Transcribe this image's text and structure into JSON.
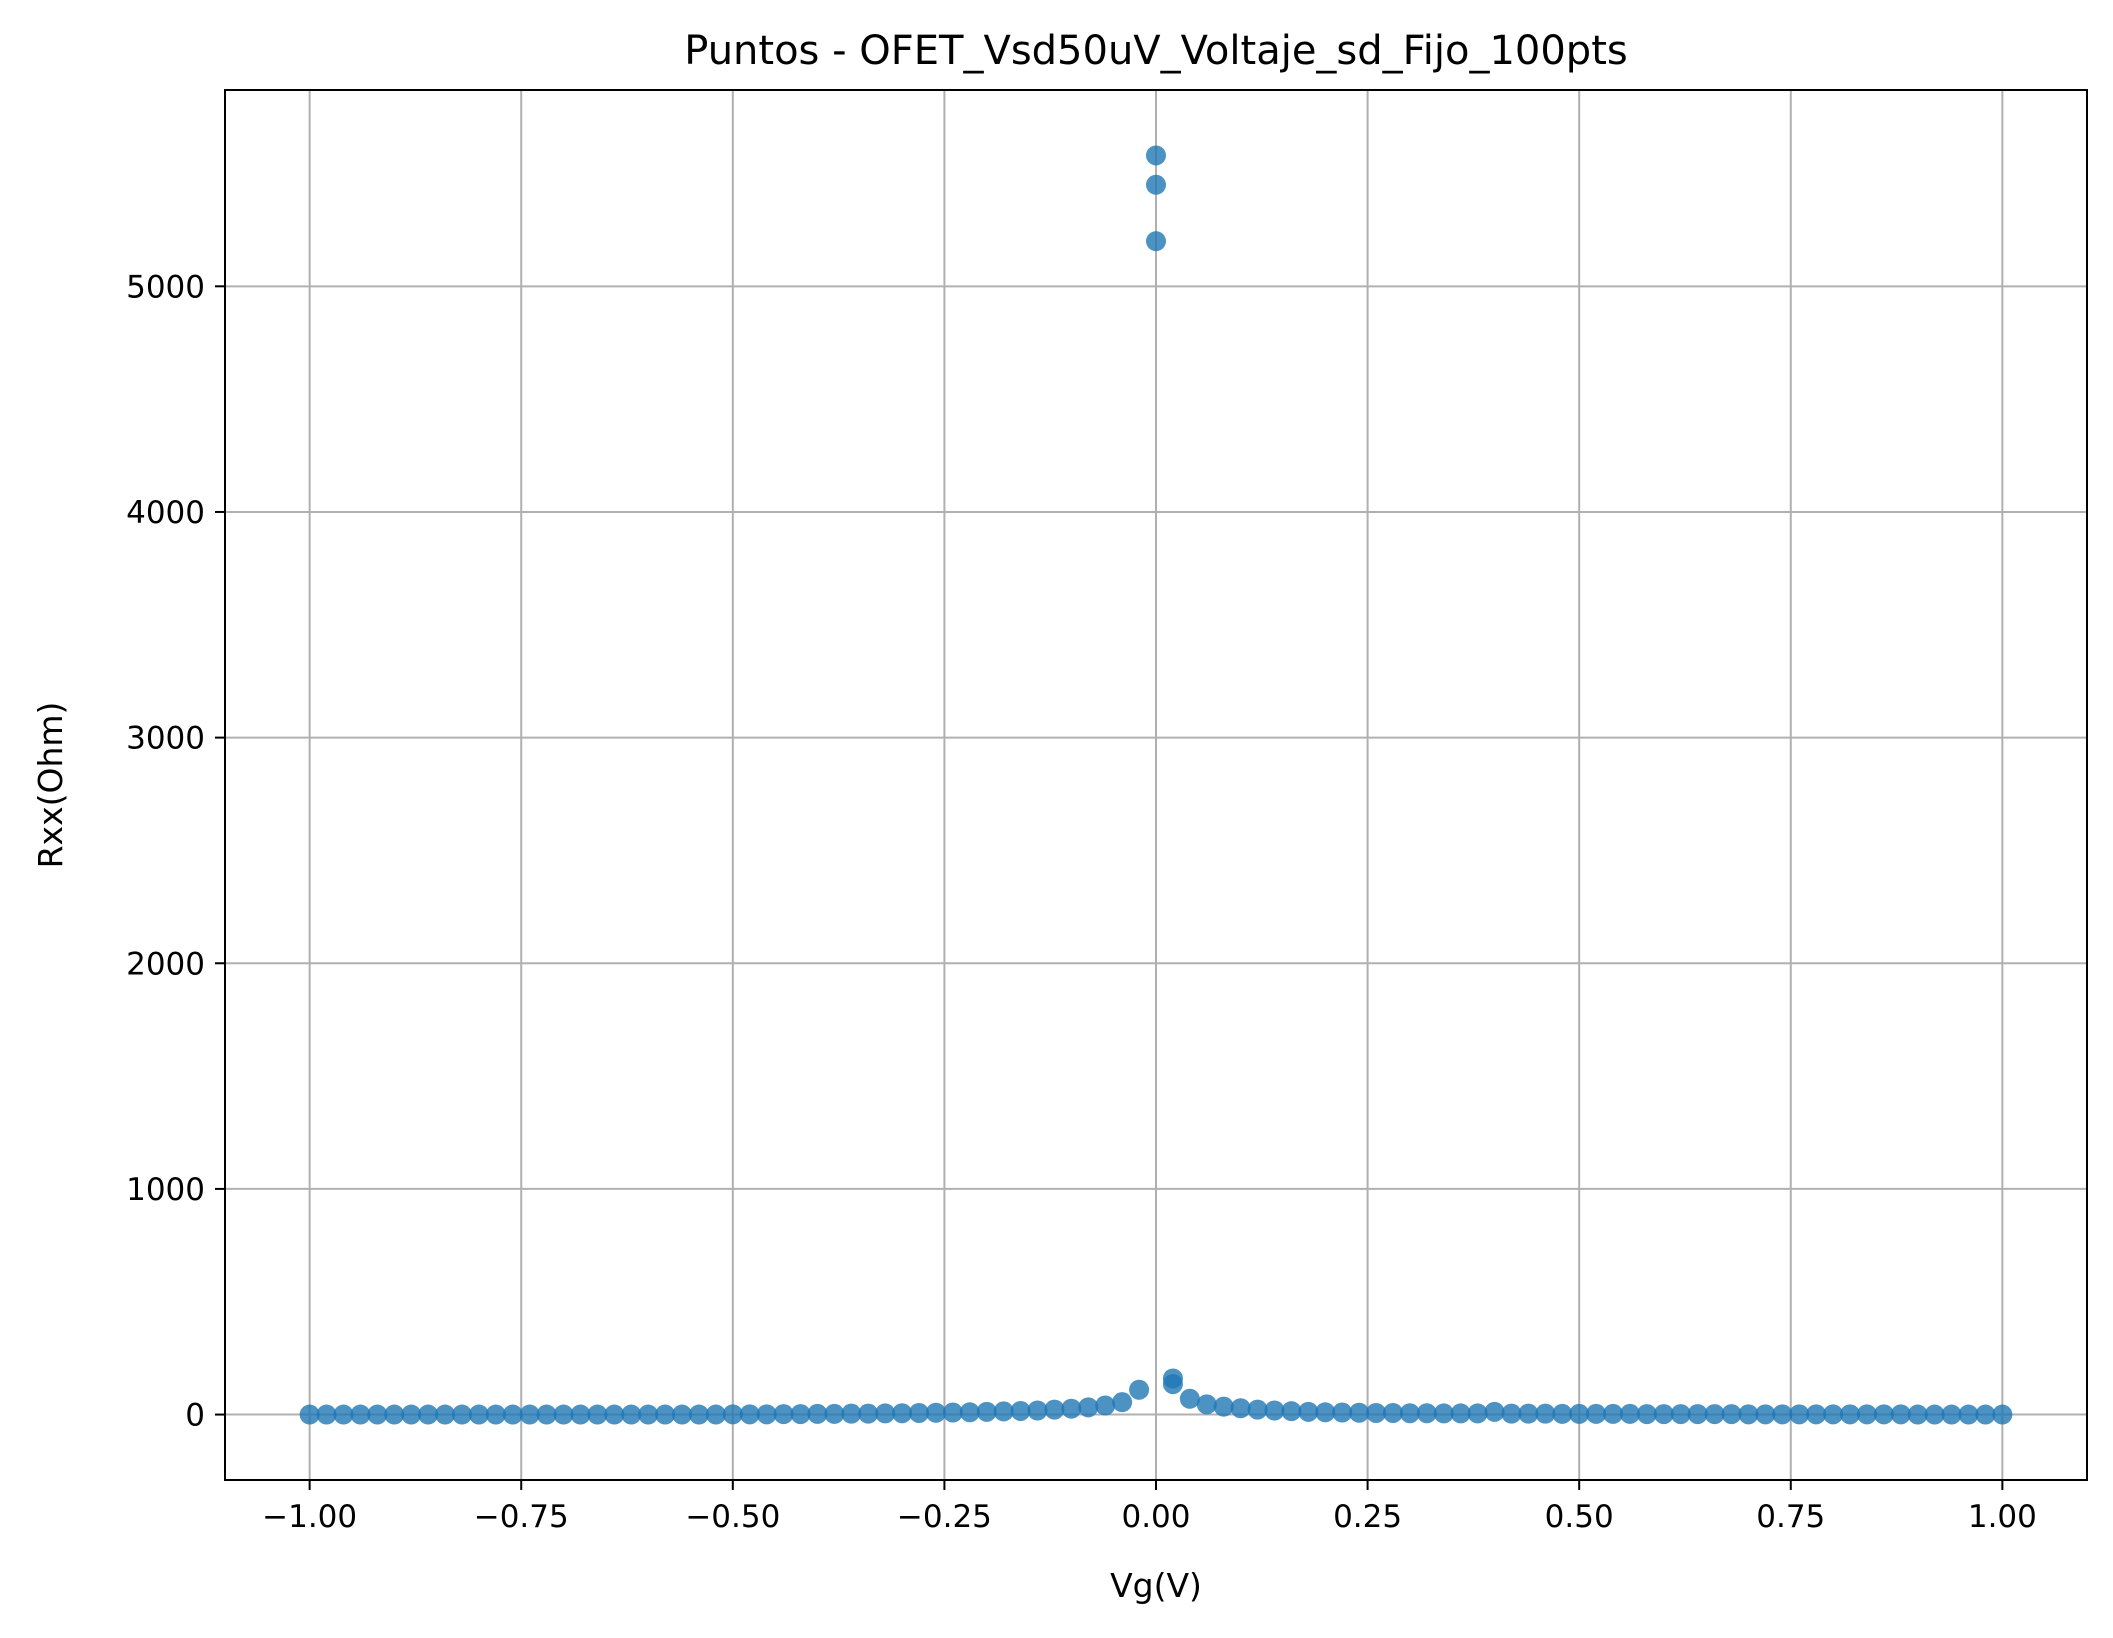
{
  "chart_data": {
    "type": "scatter",
    "title": "Puntos - OFET_Vsd50uV_Voltaje_sd_Fijo_100pts",
    "xlabel": "Vg(V)",
    "ylabel": "Rxx(Ohm)",
    "xlim": [
      -1.1,
      1.1
    ],
    "ylim": [
      -290,
      5870
    ],
    "grid": true,
    "legend": "none",
    "xticks": [
      -1.0,
      -0.75,
      -0.5,
      -0.25,
      0.0,
      0.25,
      0.5,
      0.75,
      1.0
    ],
    "xtick_labels": [
      "−1.00",
      "−0.75",
      "−0.50",
      "−0.25",
      "0.00",
      "0.25",
      "0.50",
      "0.75",
      "1.00"
    ],
    "yticks": [
      0,
      1000,
      2000,
      3000,
      4000,
      5000
    ],
    "ytick_labels": [
      "0",
      "1000",
      "2000",
      "3000",
      "4000",
      "5000"
    ],
    "colors": {
      "marker": "#1f77b4"
    },
    "series": [
      {
        "x": [
          -1.0,
          -0.98,
          -0.96,
          -0.94,
          -0.92,
          -0.9,
          -0.88,
          -0.86,
          -0.84,
          -0.82,
          -0.8,
          -0.78,
          -0.76,
          -0.74,
          -0.72,
          -0.7,
          -0.68,
          -0.66,
          -0.64,
          -0.62,
          -0.6,
          -0.58,
          -0.56,
          -0.54,
          -0.52,
          -0.5,
          -0.48,
          -0.46,
          -0.44,
          -0.42,
          -0.4,
          -0.38,
          -0.36,
          -0.34,
          -0.32,
          -0.3,
          -0.28,
          -0.26,
          -0.24,
          -0.22,
          -0.2,
          -0.18,
          -0.16,
          -0.14,
          -0.12,
          -0.1,
          -0.08,
          -0.06,
          -0.04,
          -0.02,
          0.0,
          0.0,
          0.0,
          0.02,
          0.02,
          0.04,
          0.06,
          0.08,
          0.1,
          0.12,
          0.14,
          0.16,
          0.18,
          0.2,
          0.22,
          0.24,
          0.26,
          0.28,
          0.3,
          0.32,
          0.34,
          0.36,
          0.38,
          0.4,
          0.42,
          0.44,
          0.46,
          0.48,
          0.5,
          0.52,
          0.54,
          0.56,
          0.58,
          0.6,
          0.62,
          0.64,
          0.66,
          0.68,
          0.7,
          0.72,
          0.74,
          0.76,
          0.78,
          0.8,
          0.82,
          0.84,
          0.86,
          0.88,
          0.9,
          0.92,
          0.94,
          0.96,
          0.98,
          1.0
        ],
        "y": [
          0,
          0,
          0,
          0,
          0,
          0,
          0,
          0,
          0,
          0,
          0,
          0,
          0,
          0,
          0,
          0,
          0,
          0,
          0,
          0,
          0,
          0,
          0,
          0,
          0,
          1,
          1,
          1,
          2,
          2,
          3,
          3,
          4,
          4,
          5,
          6,
          7,
          8,
          9,
          10,
          12,
          14,
          16,
          18,
          22,
          26,
          32,
          40,
          55,
          110,
          5580,
          5450,
          5200,
          160,
          135,
          70,
          45,
          35,
          28,
          22,
          18,
          15,
          12,
          10,
          9,
          8,
          7,
          7,
          6,
          6,
          5,
          5,
          5,
          12,
          4,
          4,
          4,
          3,
          3,
          3,
          3,
          3,
          2,
          2,
          2,
          2,
          2,
          2,
          1,
          1,
          1,
          1,
          1,
          1,
          1,
          1,
          1,
          1,
          0,
          0,
          0,
          0,
          0,
          0
        ]
      }
    ]
  }
}
